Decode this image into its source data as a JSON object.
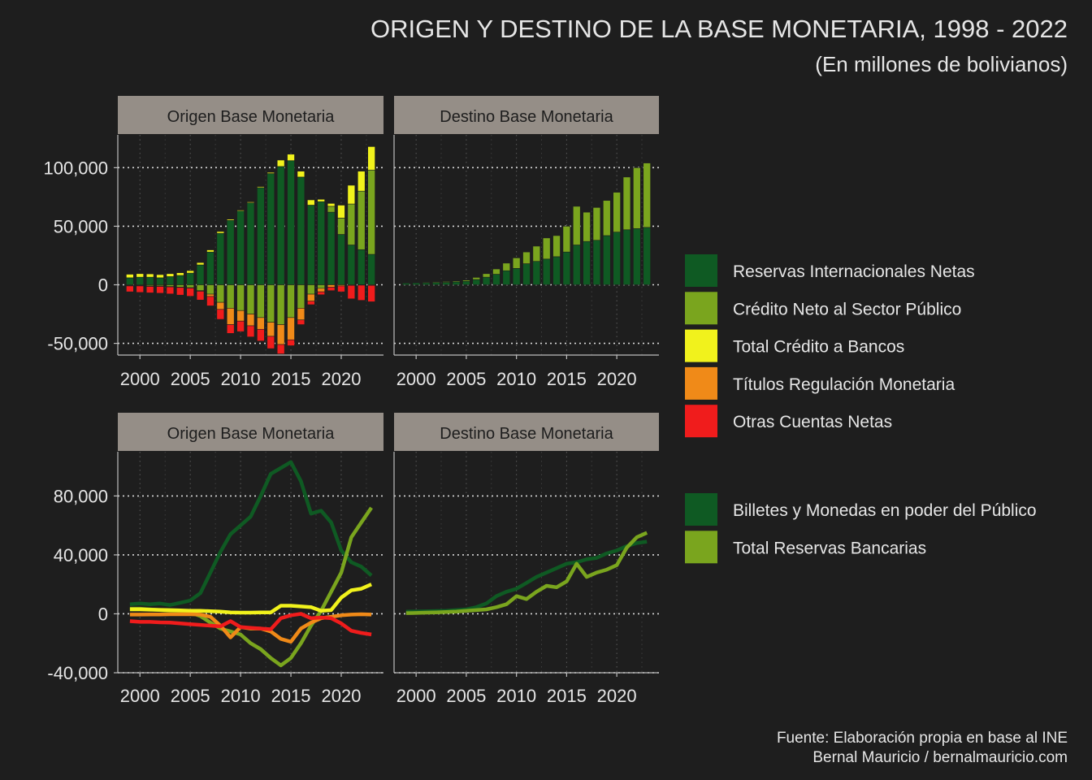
{
  "title": "ORIGEN Y DESTINO DE LA BASE MONETARIA, 1998 - 2022",
  "subtitle": "(En millones de bolivianos)",
  "caption": [
    "Fuente: Elaboración propia en base al INE",
    "Bernal Mauricio / bernalmauricio.com"
  ],
  "colors": {
    "reservas": "#0f5a23",
    "credito_publico": "#7aa51e",
    "credito_bancos": "#f1f21c",
    "titulos": "#f08a18",
    "otras": "#f01c1c",
    "billetes": "#0f5a23",
    "reservas_bancarias": "#7aa51e",
    "strip_bg": "#958e87",
    "grid": "#d8d8d8"
  },
  "legend_top": [
    {
      "label": "Reservas Internacionales Netas",
      "color_key": "reservas"
    },
    {
      "label": "Crédito Neto al Sector Público",
      "color_key": "credito_publico"
    },
    {
      "label": "Total Crédito a Bancos",
      "color_key": "credito_bancos"
    },
    {
      "label": "Títulos Regulación Monetaria",
      "color_key": "titulos"
    },
    {
      "label": "Otras Cuentas Netas",
      "color_key": "otras"
    }
  ],
  "legend_bottom": [
    {
      "label": "Billetes y Monedas en poder del Público",
      "color_key": "billetes"
    },
    {
      "label": "Total Reservas Bancarias",
      "color_key": "reservas_bancarias"
    }
  ],
  "chart_data": [
    {
      "type": "bar",
      "facet": "Origen Base Monetaria",
      "stacked": true,
      "x": [
        1999,
        2000,
        2001,
        2002,
        2003,
        2004,
        2005,
        2006,
        2007,
        2008,
        2009,
        2010,
        2011,
        2012,
        2013,
        2014,
        2015,
        2016,
        2017,
        2018,
        2019,
        2020,
        2021,
        2022,
        2023
      ],
      "x_ticks": [
        "2000",
        "2005",
        "2010",
        "2015",
        "2020"
      ],
      "y_ticks": [
        "-50,000",
        "0",
        "50,000",
        "100,000"
      ],
      "ylim": [
        -60000,
        128000
      ],
      "grid": true,
      "series": [
        {
          "name": "Reservas Internacionales Netas",
          "color_key": "reservas",
          "values": [
            6000,
            6500,
            6500,
            6000,
            7000,
            8000,
            10000,
            17000,
            28000,
            44000,
            55000,
            63000,
            70000,
            83000,
            95000,
            101000,
            106000,
            92000,
            68000,
            71000,
            62000,
            43000,
            34000,
            30000,
            26000
          ]
        },
        {
          "name": "Crédito Neto al Sector Público",
          "color_key": "credito_publico",
          "values": [
            -500,
            -500,
            -1000,
            -1000,
            -1500,
            -2000,
            -2500,
            -5000,
            -8000,
            -15000,
            -20000,
            -22000,
            -25000,
            -28000,
            -32000,
            -34000,
            -28000,
            -20000,
            -8000,
            -3000,
            5000,
            14000,
            35000,
            50000,
            72000
          ]
        },
        {
          "name": "Total Crédito a Bancos",
          "color_key": "credito_bancos",
          "values": [
            3000,
            3000,
            2800,
            2700,
            2500,
            2300,
            2100,
            2000,
            1800,
            1500,
            1000,
            800,
            800,
            900,
            1000,
            5500,
            5500,
            5000,
            4500,
            2000,
            2500,
            11000,
            16000,
            17000,
            20000
          ]
        },
        {
          "name": "Títulos Regulación Monetaria",
          "color_key": "titulos",
          "values": [
            -500,
            -500,
            -400,
            -400,
            -300,
            -300,
            -300,
            -500,
            -2000,
            -6000,
            -14000,
            -9000,
            -10000,
            -10000,
            -12000,
            -17000,
            -19000,
            -10000,
            -6000,
            -3000,
            -2000,
            -1000,
            -500,
            -300,
            -500
          ]
        },
        {
          "name": "Otras Cuentas Netas",
          "color_key": "otras",
          "values": [
            -5000,
            -5500,
            -5500,
            -5800,
            -6000,
            -6500,
            -7000,
            -7500,
            -8000,
            -8500,
            -7500,
            -9000,
            -9500,
            -10000,
            -10500,
            -8000,
            -5000,
            -4000,
            -3000,
            -2500,
            -3000,
            -5000,
            -11500,
            -13000,
            -14000
          ]
        }
      ]
    },
    {
      "type": "bar",
      "facet": "Destino Base Monetaria",
      "stacked": true,
      "x": [
        1999,
        2000,
        2001,
        2002,
        2003,
        2004,
        2005,
        2006,
        2007,
        2008,
        2009,
        2010,
        2011,
        2012,
        2013,
        2014,
        2015,
        2016,
        2017,
        2018,
        2019,
        2020,
        2021,
        2022,
        2023
      ],
      "x_ticks": [
        "2000",
        "2005",
        "2010",
        "2015",
        "2020"
      ],
      "grid": true,
      "series": [
        {
          "name": "Billetes y Monedas en poder del Público",
          "color_key": "billetes",
          "values": [
            1500,
            1600,
            1700,
            1900,
            2100,
            2500,
            3000,
            4500,
            6500,
            9000,
            12000,
            14000,
            18000,
            20000,
            22000,
            24000,
            28000,
            34000,
            37000,
            38000,
            42000,
            45000,
            47000,
            48000,
            49000
          ]
        },
        {
          "name": "Total Reservas Bancarias",
          "color_key": "reservas_bancarias",
          "values": [
            300,
            400,
            500,
            600,
            700,
            800,
            1000,
            1800,
            3000,
            4500,
            6500,
            9000,
            10000,
            13000,
            18000,
            18000,
            22000,
            33000,
            25000,
            28000,
            30000,
            34000,
            45000,
            52000,
            55000
          ]
        }
      ]
    },
    {
      "type": "line",
      "facet": "Origen Base Monetaria",
      "x": [
        1999,
        2000,
        2001,
        2002,
        2003,
        2004,
        2005,
        2006,
        2007,
        2008,
        2009,
        2010,
        2011,
        2012,
        2013,
        2014,
        2015,
        2016,
        2017,
        2018,
        2019,
        2020,
        2021,
        2022,
        2023
      ],
      "x_ticks": [
        "2000",
        "2005",
        "2010",
        "2015",
        "2020"
      ],
      "y_ticks": [
        "-40,000",
        "0",
        "40,000",
        "80,000"
      ],
      "ylim": [
        -40000,
        110000
      ],
      "grid": true,
      "series": [
        {
          "name": "Reservas Internacionales Netas",
          "color_key": "reservas",
          "values": [
            6500,
            7000,
            6500,
            7000,
            6000,
            7500,
            9000,
            14000,
            28000,
            42000,
            54000,
            60000,
            66000,
            80000,
            95000,
            99000,
            103000,
            90000,
            68000,
            70000,
            62000,
            43000,
            35000,
            32000,
            26000
          ]
        },
        {
          "name": "Crédito Neto al Sector Público",
          "color_key": "credito_publico",
          "values": [
            3500,
            3500,
            3000,
            2500,
            2000,
            1800,
            1000,
            -1500,
            -6000,
            -10000,
            -12000,
            -14000,
            -20000,
            -24000,
            -30000,
            -35000,
            -30000,
            -20000,
            -8000,
            2000,
            15000,
            28000,
            52000,
            62000,
            72000
          ]
        },
        {
          "name": "Total Crédito a Bancos",
          "color_key": "credito_bancos",
          "values": [
            3000,
            3000,
            2800,
            2700,
            2500,
            2300,
            2100,
            2000,
            1800,
            1500,
            1000,
            800,
            800,
            900,
            1000,
            5500,
            5500,
            5000,
            4500,
            2000,
            2500,
            11000,
            16000,
            17000,
            20000
          ]
        },
        {
          "name": "Títulos Regulación Monetaria",
          "color_key": "titulos",
          "values": [
            -500,
            -500,
            -400,
            -400,
            -300,
            -300,
            -300,
            -500,
            -2000,
            -8000,
            -16000,
            -9000,
            -10000,
            -10000,
            -12000,
            -17000,
            -19000,
            -10000,
            -6000,
            -3000,
            -2000,
            -1000,
            -500,
            -300,
            -500
          ]
        },
        {
          "name": "Otras Cuentas Netas",
          "color_key": "otras",
          "values": [
            -5000,
            -5500,
            -5500,
            -5800,
            -6000,
            -6500,
            -7000,
            -7500,
            -8000,
            -8500,
            -5000,
            -9000,
            -9500,
            -10000,
            -10500,
            -3000,
            -1000,
            0,
            -3000,
            -2500,
            -3000,
            -6500,
            -11500,
            -13000,
            -14000
          ]
        }
      ]
    },
    {
      "type": "line",
      "facet": "Destino Base Monetaria",
      "x": [
        1999,
        2000,
        2001,
        2002,
        2003,
        2004,
        2005,
        2006,
        2007,
        2008,
        2009,
        2010,
        2011,
        2012,
        2013,
        2014,
        2015,
        2016,
        2017,
        2018,
        2019,
        2020,
        2021,
        2022,
        2023
      ],
      "x_ticks": [
        "2000",
        "2005",
        "2010",
        "2015",
        "2020"
      ],
      "grid": true,
      "series": [
        {
          "name": "Billetes y Monedas en poder del Público",
          "color_key": "billetes",
          "values": [
            1500,
            1600,
            1700,
            1900,
            2100,
            2500,
            3000,
            4500,
            7000,
            12000,
            15000,
            17000,
            21000,
            25000,
            28000,
            31000,
            34000,
            35000,
            37000,
            38000,
            41000,
            43000,
            46000,
            48000,
            49000
          ]
        },
        {
          "name": "Total Reservas Bancarias",
          "color_key": "reservas_bancarias",
          "values": [
            500,
            600,
            800,
            1000,
            1200,
            1500,
            2000,
            2500,
            3000,
            4500,
            6500,
            12000,
            10000,
            15000,
            19000,
            18000,
            22000,
            34000,
            25000,
            28000,
            30000,
            33000,
            45000,
            52000,
            55000
          ]
        }
      ]
    }
  ]
}
